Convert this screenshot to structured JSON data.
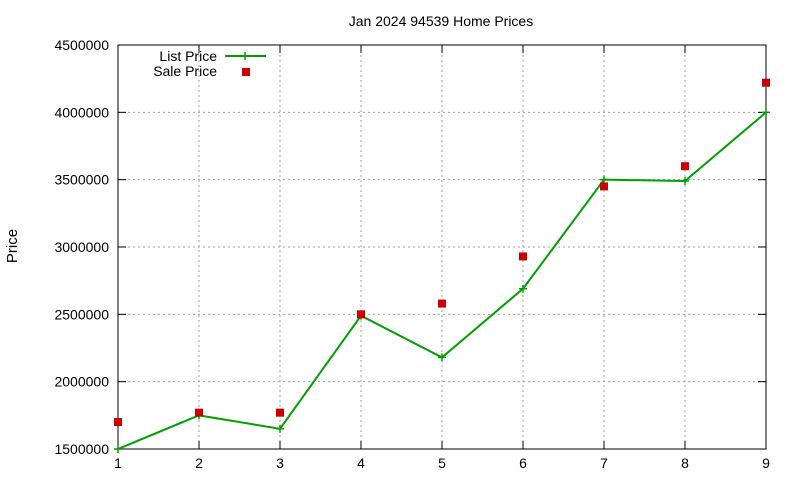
{
  "chart_data": {
    "type": "line",
    "title": "Jan 2024 94539 Home Prices",
    "xlabel": "",
    "ylabel": "Price",
    "x": [
      1,
      2,
      3,
      4,
      5,
      6,
      7,
      8,
      9
    ],
    "xlim": [
      1,
      9
    ],
    "ylim": [
      1500000,
      4500000
    ],
    "xticks": [
      1,
      2,
      3,
      4,
      5,
      6,
      7,
      8,
      9
    ],
    "yticks": [
      1500000,
      2000000,
      2500000,
      3000000,
      3500000,
      4000000,
      4500000
    ],
    "grid": true,
    "legend_position": "top-left",
    "series": [
      {
        "name": "List Price",
        "style": "line-with-plus-markers",
        "color": "#00a000",
        "values": [
          1500000,
          1750000,
          1650000,
          2490000,
          2180000,
          2690000,
          3500000,
          3490000,
          4000000
        ]
      },
      {
        "name": "Sale Price",
        "style": "square-markers",
        "color": "#cc0000",
        "values": [
          1700000,
          1770000,
          1770000,
          2500000,
          2580000,
          2930000,
          3450000,
          3600000,
          4220000
        ]
      }
    ]
  }
}
